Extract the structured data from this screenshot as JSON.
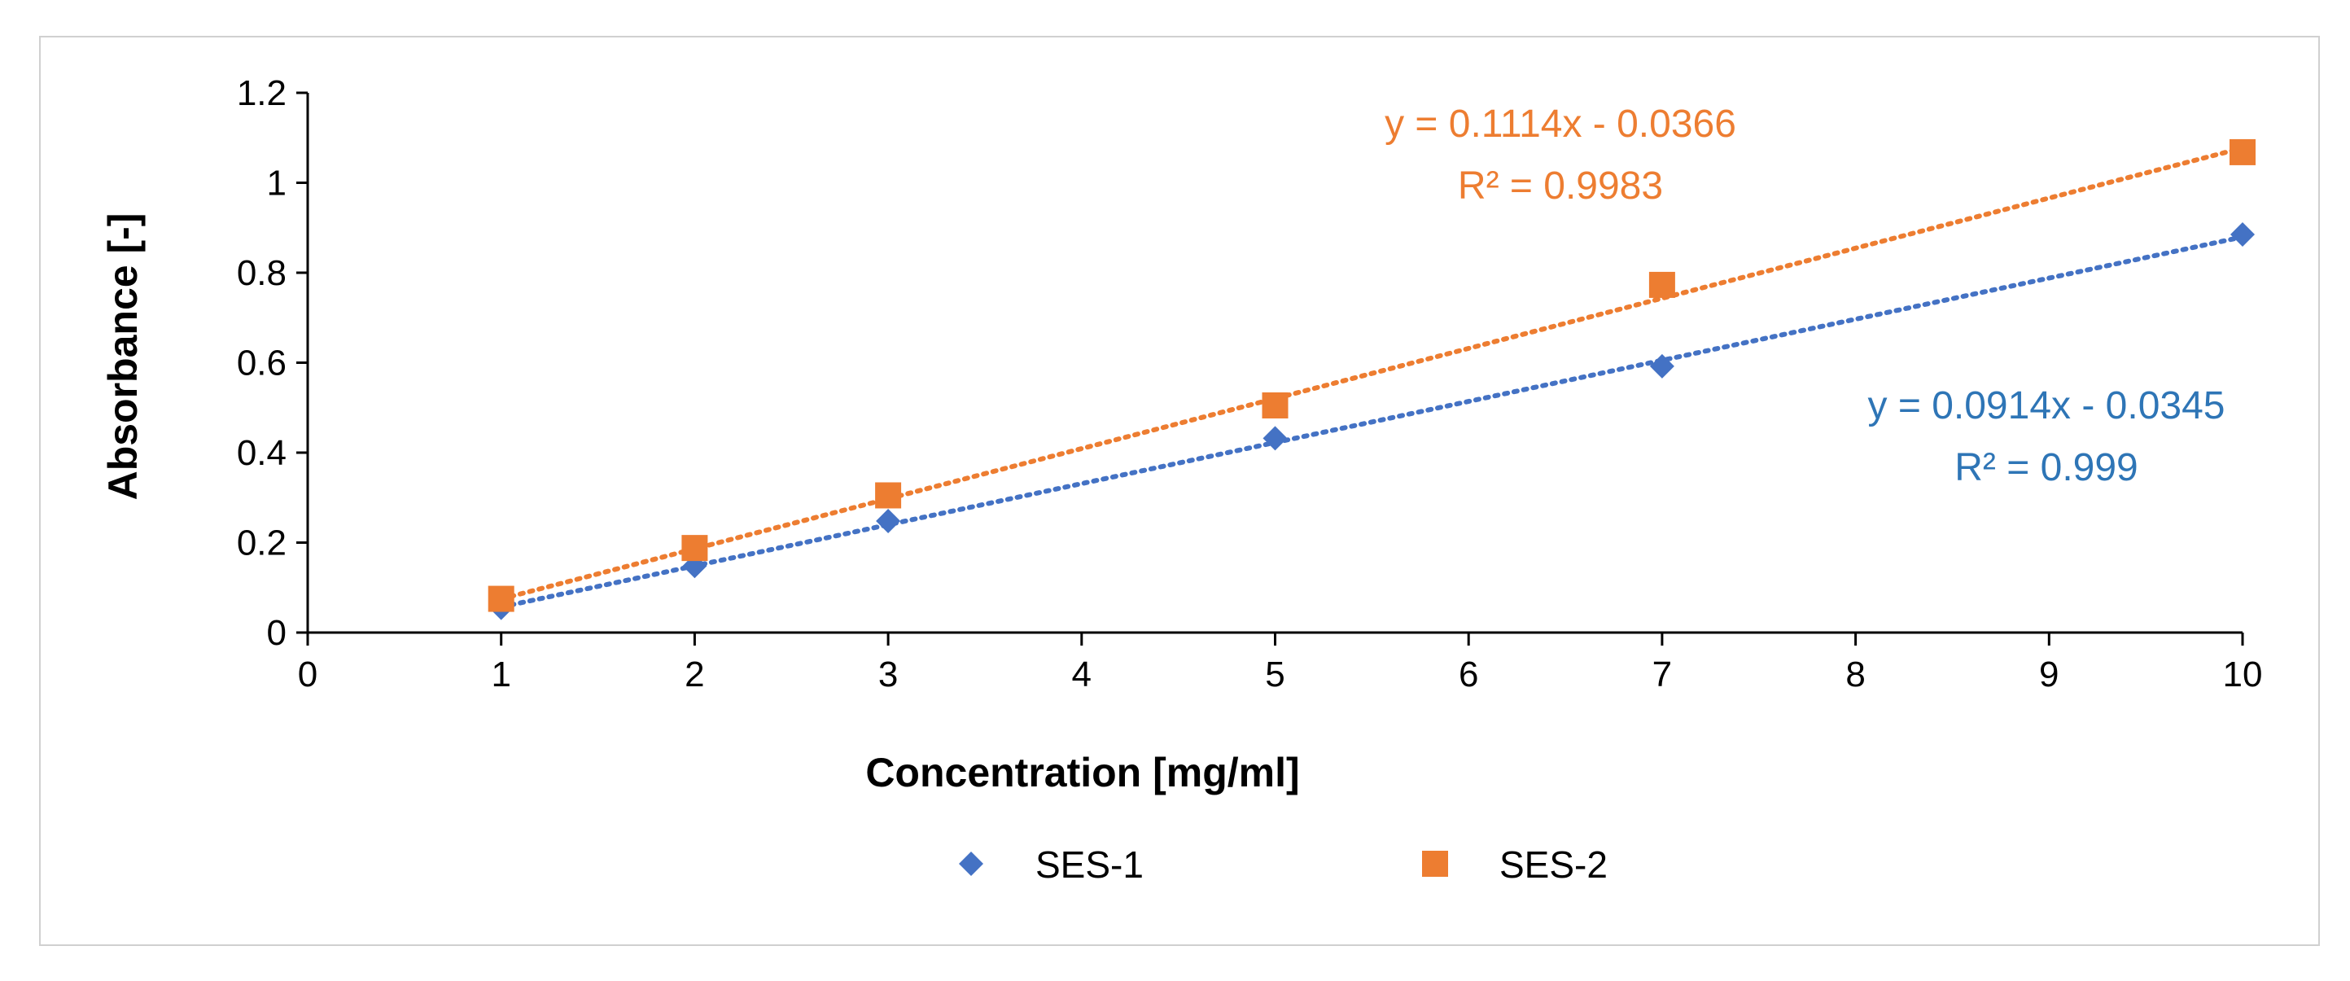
{
  "chart_data": {
    "type": "scatter",
    "xlabel": "Concentration [mg/ml]",
    "ylabel": "Absorbance [-]",
    "xlim": [
      0,
      10
    ],
    "ylim": [
      0,
      1.2
    ],
    "xticks": [
      0,
      1,
      2,
      3,
      4,
      5,
      6,
      7,
      8,
      9,
      10
    ],
    "yticks": [
      0,
      0.2,
      0.4,
      0.6,
      0.8,
      1,
      1.2
    ],
    "xtick_labels": [
      "0",
      "1",
      "2",
      "3",
      "4",
      "5",
      "6",
      "7",
      "8",
      "9",
      "10"
    ],
    "ytick_labels": [
      "0",
      "0.2",
      "0.4",
      "0.6",
      "0.8",
      "1",
      "1.2"
    ],
    "grid": false,
    "legend_position": "bottom",
    "series": [
      {
        "name": "SES-1",
        "marker": "diamond",
        "color": "#4472C4",
        "trend_color": "#4472C4",
        "label_color": "#2E75B6",
        "x": [
          1,
          2,
          3,
          5,
          7,
          10
        ],
        "y": [
          0.055,
          0.148,
          0.248,
          0.432,
          0.592,
          0.885
        ],
        "trendline": {
          "slope": 0.0914,
          "intercept": -0.0345,
          "r2": 0.999
        },
        "equation_label": "y = 0.0914x - 0.0345",
        "r2_label": "R² = 0.999"
      },
      {
        "name": "SES-2",
        "marker": "square",
        "color": "#ED7D31",
        "trend_color": "#ED7D31",
        "label_color": "#ED7D31",
        "x": [
          1,
          2,
          3,
          5,
          7,
          10
        ],
        "y": [
          0.075,
          0.188,
          0.305,
          0.505,
          0.773,
          1.068
        ],
        "trendline": {
          "slope": 0.1114,
          "intercept": -0.0366,
          "r2": 0.9983
        },
        "equation_label": "y = 0.1114x - 0.0366",
        "r2_label": "R² = 0.9983"
      }
    ]
  }
}
